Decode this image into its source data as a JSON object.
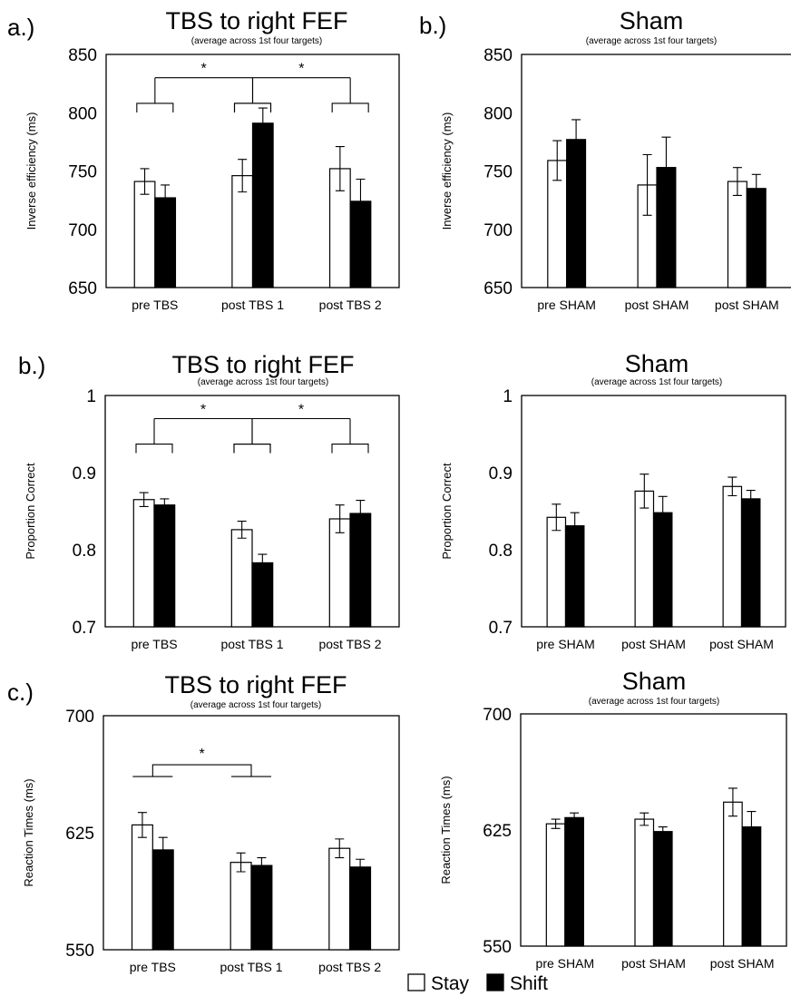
{
  "legend": {
    "stay": "Stay",
    "shift": "Shift",
    "stay_color": "#ffffff",
    "shift_color": "#000000"
  },
  "chart_data": [
    {
      "type": "bar",
      "letter": "a.)",
      "title": "TBS to right FEF",
      "subtitle": "(average across 1st four targets)",
      "ylabel": "Inverse efficiency (ms)",
      "ylim": [
        650,
        850
      ],
      "yticks": [
        "650",
        "700",
        "750",
        "800",
        "850"
      ],
      "categories": [
        "pre TBS",
        "post TBS 1",
        "post TBS 2"
      ],
      "series": [
        {
          "name": "Stay",
          "values": [
            741,
            746,
            752
          ],
          "errors": [
            11,
            14,
            19
          ]
        },
        {
          "name": "Shift",
          "values": [
            727,
            791,
            724
          ],
          "errors": [
            11,
            13,
            19
          ]
        }
      ],
      "annotations": [
        {
          "type": "bracket",
          "from": 0,
          "to": 1,
          "label": "*"
        },
        {
          "type": "bracket",
          "from": 1,
          "to": 2,
          "label": "*"
        }
      ]
    },
    {
      "type": "bar",
      "letter": "b.)",
      "title": "Sham",
      "subtitle": "(average across 1st four targets)",
      "ylabel": "Inverse efficiency (ms)",
      "ylim": [
        650,
        850
      ],
      "yticks": [
        "650",
        "700",
        "750",
        "800",
        "850"
      ],
      "categories": [
        "pre SHAM",
        "post SHAM",
        "post SHAM"
      ],
      "series": [
        {
          "name": "Stay",
          "values": [
            759,
            738,
            741
          ],
          "errors": [
            17,
            26,
            12
          ]
        },
        {
          "name": "Shift",
          "values": [
            777,
            753,
            735
          ],
          "errors": [
            17,
            26,
            12
          ]
        }
      ],
      "annotations": []
    },
    {
      "type": "bar",
      "letter": "b.)",
      "title": "TBS to right FEF",
      "subtitle": "(average across 1st four targets)",
      "ylabel": "Proportion Correct",
      "ylim": [
        0.7,
        1.0
      ],
      "yticks": [
        "0.7",
        "0.8",
        "0.9",
        "1"
      ],
      "categories": [
        "pre TBS",
        "post TBS 1",
        "post TBS 2"
      ],
      "series": [
        {
          "name": "Stay",
          "values": [
            0.865,
            0.826,
            0.84
          ],
          "errors": [
            0.009,
            0.011,
            0.018
          ]
        },
        {
          "name": "Shift",
          "values": [
            0.858,
            0.783,
            0.847
          ],
          "errors": [
            0.008,
            0.011,
            0.017
          ]
        }
      ],
      "annotations": [
        {
          "type": "bracket",
          "from": 0,
          "to": 1,
          "label": "*"
        },
        {
          "type": "bracket",
          "from": 1,
          "to": 2,
          "label": "*"
        }
      ]
    },
    {
      "type": "bar",
      "letter": "",
      "title": "Sham",
      "subtitle": "(average across 1st four targets)",
      "ylabel": "Proportion Correct",
      "ylim": [
        0.7,
        1.0
      ],
      "yticks": [
        "0.7",
        "0.8",
        "0.9",
        "1"
      ],
      "categories": [
        "pre SHAM",
        "post SHAM",
        "post SHAM"
      ],
      "series": [
        {
          "name": "Stay",
          "values": [
            0.842,
            0.876,
            0.882
          ],
          "errors": [
            0.017,
            0.022,
            0.012
          ]
        },
        {
          "name": "Shift",
          "values": [
            0.831,
            0.848,
            0.866
          ],
          "errors": [
            0.017,
            0.021,
            0.011
          ]
        }
      ],
      "annotations": []
    },
    {
      "type": "bar",
      "letter": "c.)",
      "title": "TBS to right FEF",
      "subtitle": "(average across 1st four targets)",
      "ylabel": "Reaction Times (ms)",
      "ylim": [
        550,
        700
      ],
      "yticks": [
        "550",
        "625",
        "700"
      ],
      "categories": [
        "pre TBS",
        "post TBS 1",
        "post TBS 2"
      ],
      "series": [
        {
          "name": "Stay",
          "values": [
            630,
            606,
            615
          ],
          "errors": [
            8,
            6,
            6
          ]
        },
        {
          "name": "Shift",
          "values": [
            614,
            604,
            603
          ],
          "errors": [
            8,
            5,
            5
          ]
        }
      ],
      "annotations": [
        {
          "type": "line",
          "from": 0,
          "to": 1,
          "label": "*"
        }
      ]
    },
    {
      "type": "bar",
      "letter": "",
      "title": "Sham",
      "subtitle": "(average across 1st four targets)",
      "ylabel": "Reaction Times (ms)",
      "ylim": [
        550,
        700
      ],
      "yticks": [
        "550",
        "625",
        "700"
      ],
      "categories": [
        "pre SHAM",
        "post SHAM",
        "post SHAM"
      ],
      "series": [
        {
          "name": "Stay",
          "values": [
            629,
            632,
            643
          ],
          "errors": [
            3,
            4,
            9
          ]
        },
        {
          "name": "Shift",
          "values": [
            633,
            624,
            627
          ],
          "errors": [
            3,
            3,
            10
          ]
        }
      ],
      "annotations": []
    }
  ]
}
